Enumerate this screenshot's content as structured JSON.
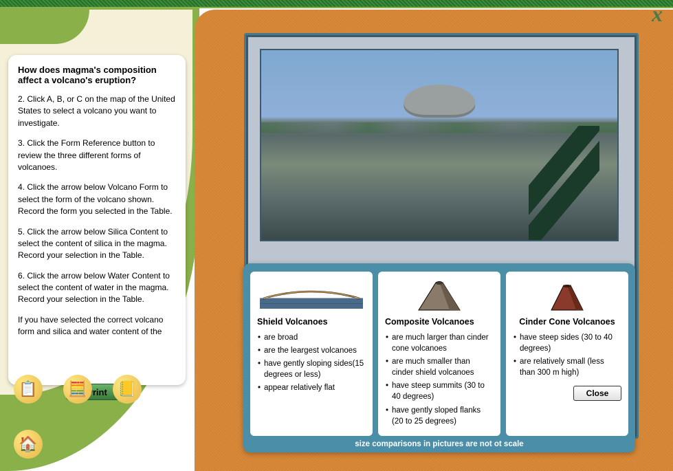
{
  "close_x": "x",
  "sidebar": {
    "title": "How does magma's composition affect a volcano's eruption?",
    "paragraphs": [
      "2. Click A, B, or C on the map of the United States to select a volcano you want to investigate.",
      "3. Click the Form Reference button to review the three different forms of volcanoes.",
      "4. Click the arrow below Volcano Form to select the form of the volcano shown. Record the form you selected in the Table.",
      "5. Click the arrow below Silica Content to select the content of silica in the magma. Record your selection in the Table.",
      "6. Click the arrow below Water Content to select the content of water in the magma. Record your selection in the Table.",
      "If you have selected the correct volcano form and silica and water content of the"
    ],
    "print_label": "Print"
  },
  "tools": {
    "clipboard": "📋",
    "calculator": "🧮",
    "table": "📒",
    "home": "🏠"
  },
  "info": {
    "cards": [
      {
        "title": "Shield Volcanoes",
        "title_center": false,
        "points": [
          "are broad",
          "are the leargest volcanoes",
          "have gently sloping sides(15 degrees or less)",
          "appear relatively flat"
        ],
        "shape": "shield",
        "colors": {
          "fill": "#d8a050",
          "outline": "#000",
          "water": "#4a6a8a"
        }
      },
      {
        "title": "Composite Volcanoes",
        "title_center": false,
        "points": [
          "are much larger than cinder cone volcanoes",
          "are much smaller than cinder shield volcanoes",
          "have steep summits (30 to 40 degrees)",
          "have gently sloped flanks (20 to 25 degrees)"
        ],
        "shape": "composite",
        "colors": {
          "fill": "#8a7a6a",
          "shade": "#6a5a4a",
          "outline": "#000"
        }
      },
      {
        "title": "Cinder Cone Volcanoes",
        "title_center": true,
        "points": [
          "have steep sides (30 to 40 degrees)",
          "are relatively small (less than 300 m high)"
        ],
        "shape": "cinder",
        "colors": {
          "fill": "#8a3a2a",
          "shade": "#6a2a1a",
          "outline": "#000"
        }
      }
    ],
    "close_label": "Close",
    "footer": "size comparisons in pictures are not ot scale"
  }
}
